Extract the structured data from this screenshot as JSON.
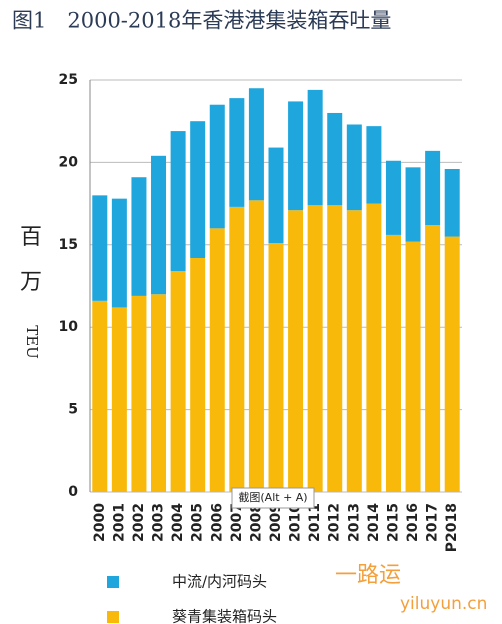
{
  "chart_data": {
    "type": "stacked_bar",
    "title": "图1　2000-2018年香港港集装箱吞吐量",
    "ylabel": [
      "百",
      "万",
      "TEU"
    ],
    "categories": [
      "2000",
      "2001",
      "2002",
      "2003",
      "2004",
      "2005",
      "2006",
      "2007",
      "2008",
      "2009",
      "2010",
      "2011",
      "2012",
      "2013",
      "2014",
      "2015",
      "2016",
      "2017",
      "P2018"
    ],
    "series": [
      {
        "name": "葵青集装箱码头",
        "color": "#f8b90a",
        "values": [
          11.6,
          11.2,
          11.9,
          12.0,
          13.4,
          14.2,
          16.0,
          17.3,
          17.7,
          15.1,
          17.1,
          17.4,
          17.4,
          17.1,
          17.5,
          15.6,
          15.2,
          16.2,
          15.5
        ]
      },
      {
        "name": "中流/内河码头",
        "color": "#1ea6dd",
        "values": [
          6.4,
          6.6,
          7.2,
          8.4,
          8.5,
          8.3,
          7.5,
          6.6,
          6.8,
          5.8,
          6.6,
          7.0,
          5.6,
          5.2,
          4.7,
          4.5,
          4.5,
          4.5,
          4.1
        ]
      }
    ],
    "ylim": [
      0,
      25
    ],
    "yticks": [
      0,
      5,
      10,
      15,
      20,
      25
    ],
    "grid": true
  },
  "overlay": {
    "tooltip": "截图(Alt + A)",
    "watermark": "一路运",
    "watermark_url": "yiluyun.cn"
  }
}
